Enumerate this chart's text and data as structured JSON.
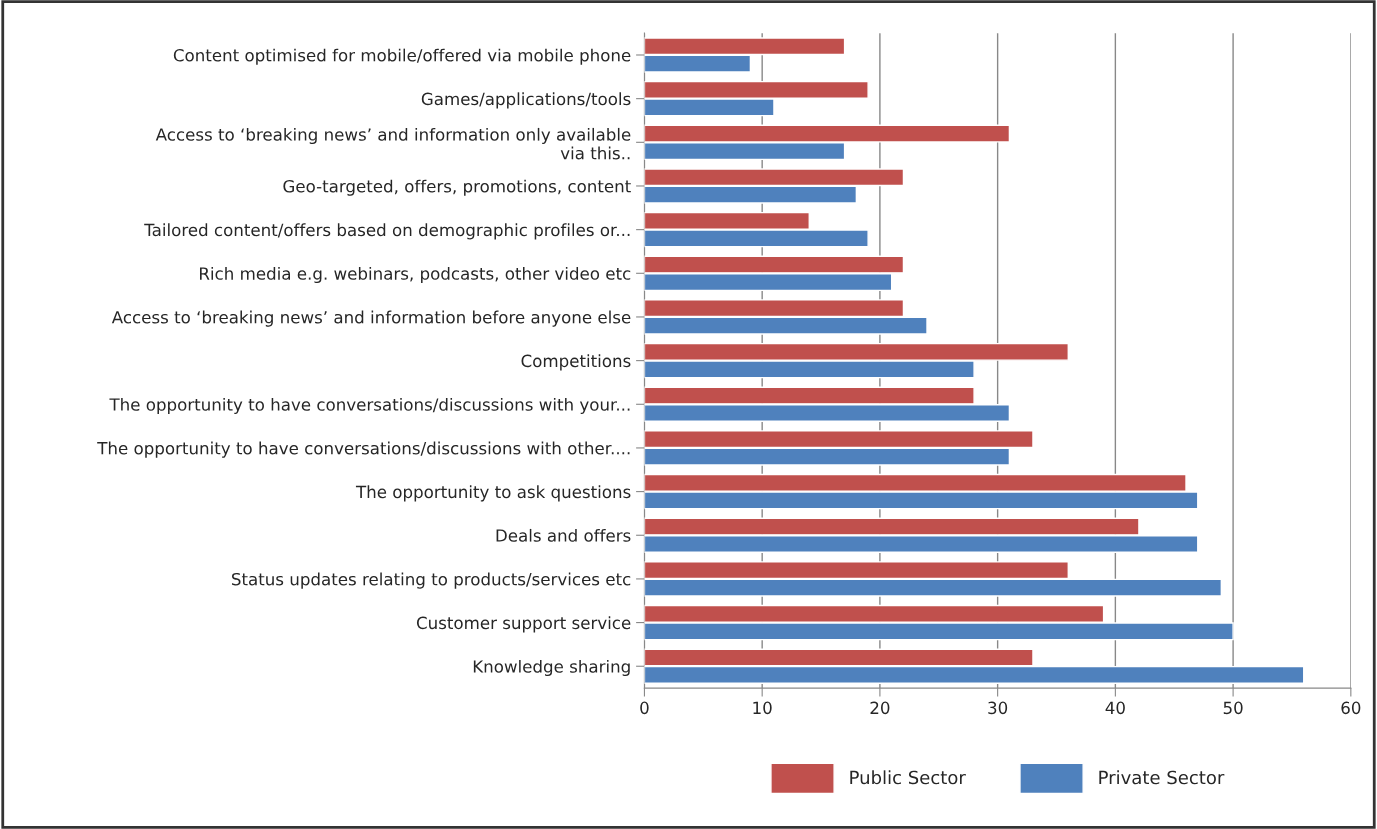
{
  "chart_data": {
    "type": "bar",
    "orientation": "horizontal",
    "categories": [
      "Content optimised for mobile/offered via mobile phone",
      "Games/applications/tools",
      "Access to ‘breaking news’ and information only available\nvia this..",
      "Geo-targeted, offers, promotions, content",
      "Tailored content/offers based on demographic profiles or...",
      "Rich media e.g. webinars, podcasts, other video etc",
      "Access to ‘breaking news’ and information before anyone else",
      "Competitions",
      "The opportunity to have conversations/discussions with your...",
      "The opportunity to have conversations/discussions with other....",
      "The opportunity to ask questions",
      "Deals and offers",
      "Status updates relating to products/services etc",
      "Customer support service",
      "Knowledge sharing"
    ],
    "series": [
      {
        "name": "Public Sector",
        "color": "#c0504d",
        "values": [
          17,
          19,
          31,
          22,
          14,
          22,
          22,
          36,
          28,
          33,
          46,
          42,
          36,
          39,
          33
        ]
      },
      {
        "name": "Private Sector",
        "color": "#4f81bd",
        "values": [
          9,
          11,
          17,
          18,
          19,
          21,
          24,
          28,
          31,
          31,
          47,
          47,
          49,
          50,
          56
        ]
      }
    ],
    "xlim": [
      0,
      60
    ],
    "xticks": [
      0,
      10,
      20,
      30,
      40,
      50,
      60
    ],
    "grid": "x",
    "legend": "bottom"
  }
}
